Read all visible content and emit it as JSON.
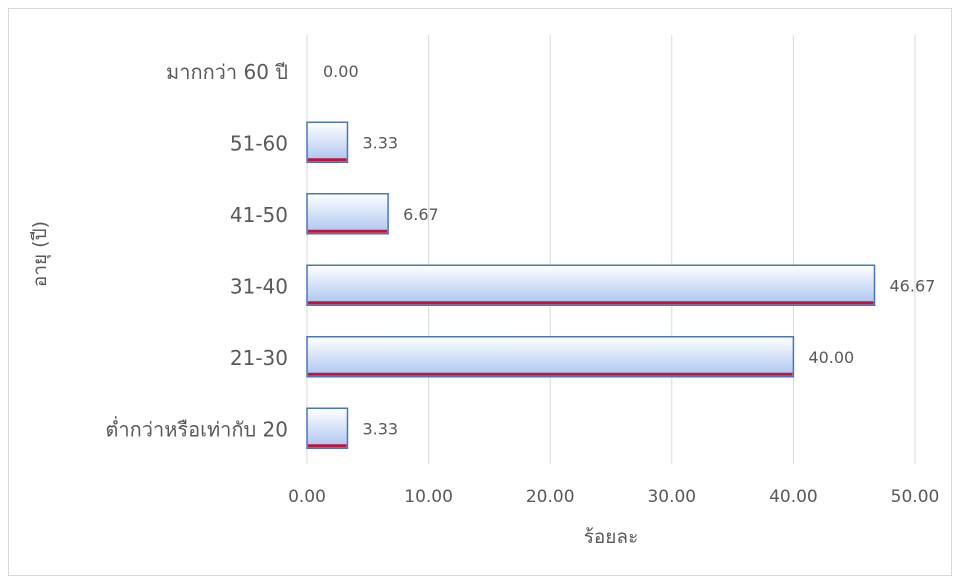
{
  "chart_data": {
    "type": "bar",
    "orientation": "horizontal",
    "categories": [
      "ต่ำกว่าหรือเท่ากับ 20",
      "21-30",
      "31-40",
      "41-50",
      "51-60",
      "มากกว่า 60 ปี"
    ],
    "values": [
      3.33,
      40.0,
      46.67,
      6.67,
      3.33,
      0.0
    ],
    "data_labels": [
      "3.33",
      "40.00",
      "46.67",
      "6.67",
      "3.33",
      "0.00"
    ],
    "x_ticks": [
      "0.00",
      "10.00",
      "20.00",
      "30.00",
      "40.00",
      "50.00"
    ],
    "xlim": [
      0,
      50
    ],
    "xlabel": "ร้อยละ",
    "ylabel": "อายุ (ปี)",
    "grid": "vertical",
    "legend": "none",
    "colors": {
      "bar_fill_light": "#f2f6fd",
      "bar_fill_dark": "#a9c4ef",
      "bar_border": "#4a76b8",
      "bar_shadow": "#c0143c",
      "grid": "#d9d9d9",
      "text": "#595959"
    }
  }
}
